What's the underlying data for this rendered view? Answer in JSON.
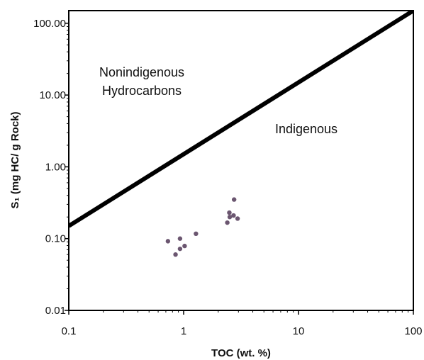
{
  "chart_data": {
    "type": "scatter",
    "xlabel": "TOC (wt. %)",
    "ylabel": "S₁ (mg HC/ g Rock)",
    "x_scale": "log",
    "y_scale": "log",
    "xlim": [
      0.1,
      100
    ],
    "ylim": [
      0.01,
      150
    ],
    "x_ticks": [
      {
        "value": 0.1,
        "label": "0.1"
      },
      {
        "value": 1,
        "label": "1"
      },
      {
        "value": 10,
        "label": "10"
      },
      {
        "value": 100,
        "label": "100"
      }
    ],
    "y_ticks": [
      {
        "value": 0.01,
        "label": "0.01"
      },
      {
        "value": 0.1,
        "label": "0.10"
      },
      {
        "value": 1,
        "label": "1.00"
      },
      {
        "value": 10,
        "label": "10.00"
      },
      {
        "value": 100,
        "label": "100.00"
      }
    ],
    "boundary_line": {
      "x": [
        0.1,
        100
      ],
      "y": [
        0.15,
        150
      ]
    },
    "regions": [
      {
        "label_lines": [
          "Nonindigenous",
          "Hydrocarbons"
        ]
      },
      {
        "label_lines": [
          "Indigenous"
        ]
      }
    ],
    "points": [
      {
        "x": 0.73,
        "y": 0.092
      },
      {
        "x": 0.85,
        "y": 0.06
      },
      {
        "x": 0.93,
        "y": 0.1
      },
      {
        "x": 0.93,
        "y": 0.072
      },
      {
        "x": 1.02,
        "y": 0.079
      },
      {
        "x": 1.28,
        "y": 0.117
      },
      {
        "x": 2.4,
        "y": 0.167
      },
      {
        "x": 2.5,
        "y": 0.23
      },
      {
        "x": 2.52,
        "y": 0.2
      },
      {
        "x": 2.72,
        "y": 0.21
      },
      {
        "x": 2.75,
        "y": 0.35
      },
      {
        "x": 2.95,
        "y": 0.19
      }
    ],
    "grid": false,
    "legend": "none",
    "colors": {
      "points": "#6b5670",
      "line": "#000000",
      "axes": "#000000"
    }
  }
}
